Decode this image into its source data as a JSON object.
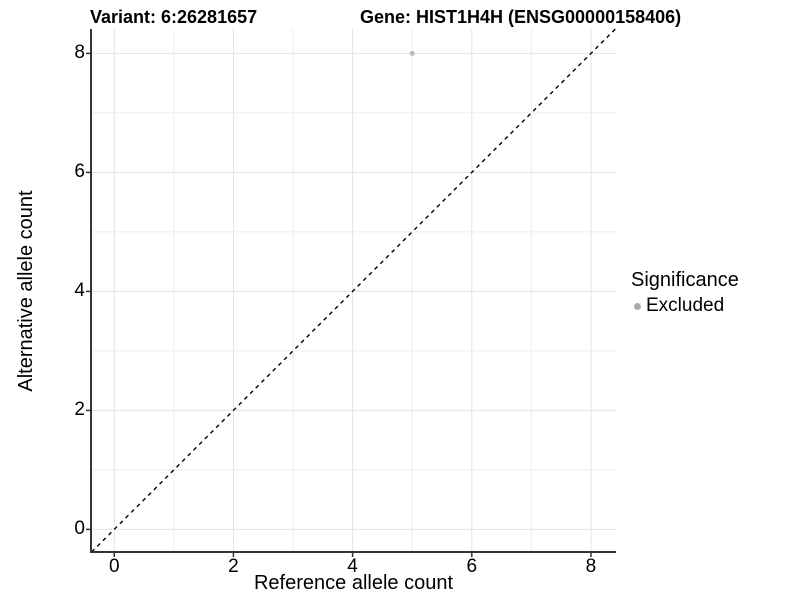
{
  "figure": {
    "background": "#ffffff"
  },
  "chart_data": {
    "type": "scatter",
    "title_left": "Variant: 6:26281657",
    "title_right": "Gene: HIST1H4H (ENSG00000158406)",
    "xlabel": "Reference allele count",
    "ylabel": "Alternative allele count",
    "x_ticks": [
      0,
      2,
      4,
      6,
      8
    ],
    "y_ticks": [
      0,
      2,
      4,
      6,
      8
    ],
    "xlim": [
      -0.39,
      8.42
    ],
    "ylim": [
      -0.38,
      8.41
    ],
    "grid_interval": 1,
    "grid_on": true,
    "identity_line": {
      "slope": 1,
      "intercept": 0,
      "style": "dashed",
      "color": "#000000"
    },
    "points": [
      {
        "x": 5,
        "y": 8,
        "significance": "Excluded",
        "color": "#b9b9b9",
        "radius": 2.5
      }
    ],
    "legend": {
      "position": "right",
      "title": "Significance",
      "items": [
        {
          "label": "Excluded",
          "color": "#ababab"
        }
      ]
    },
    "colors": {
      "grid_major": "#e3e3e3",
      "grid_minor": "#eeeeee",
      "axis_line": "#333333",
      "text": "#000000"
    }
  }
}
